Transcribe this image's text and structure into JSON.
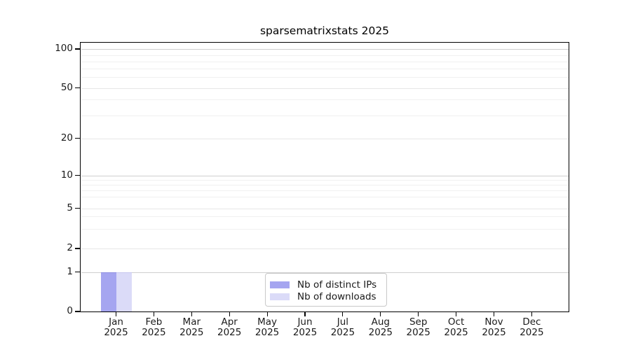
{
  "chart_data": {
    "type": "bar",
    "title": "sparsematrixstats 2025",
    "x_month_labels": [
      "Jan",
      "Feb",
      "Mar",
      "Apr",
      "May",
      "Jun",
      "Jul",
      "Aug",
      "Sep",
      "Oct",
      "Nov",
      "Dec"
    ],
    "x_year_label": "2025",
    "series": [
      {
        "name": "Nb of distinct IPs",
        "color": "#a5a5f0",
        "edge_color": "#8f8fe2",
        "values": [
          1,
          0,
          0,
          0,
          0,
          0,
          0,
          0,
          0,
          0,
          0,
          0
        ]
      },
      {
        "name": "Nb of downloads",
        "color": "#dbdbf8",
        "edge_color": "#c6c6ef",
        "values": [
          1,
          0,
          0,
          0,
          0,
          0,
          0,
          0,
          0,
          0,
          0,
          0
        ]
      }
    ],
    "xlabel": "",
    "ylabel": "",
    "yscale": "log (linear segment 0 to 1)",
    "ylim": [
      0,
      100
    ],
    "yticks": [
      0,
      1,
      2,
      5,
      10,
      20,
      50,
      100
    ],
    "grid": "horizontal major and log-minor gridlines",
    "legend_position": "inside bottom-center",
    "colors": {
      "axis": "#000000",
      "major_gridline": "#cfcfcf",
      "mid_gridline": "#e7e7e7",
      "minor_gridline": "#f0f0f0",
      "background": "#ffffff"
    }
  }
}
